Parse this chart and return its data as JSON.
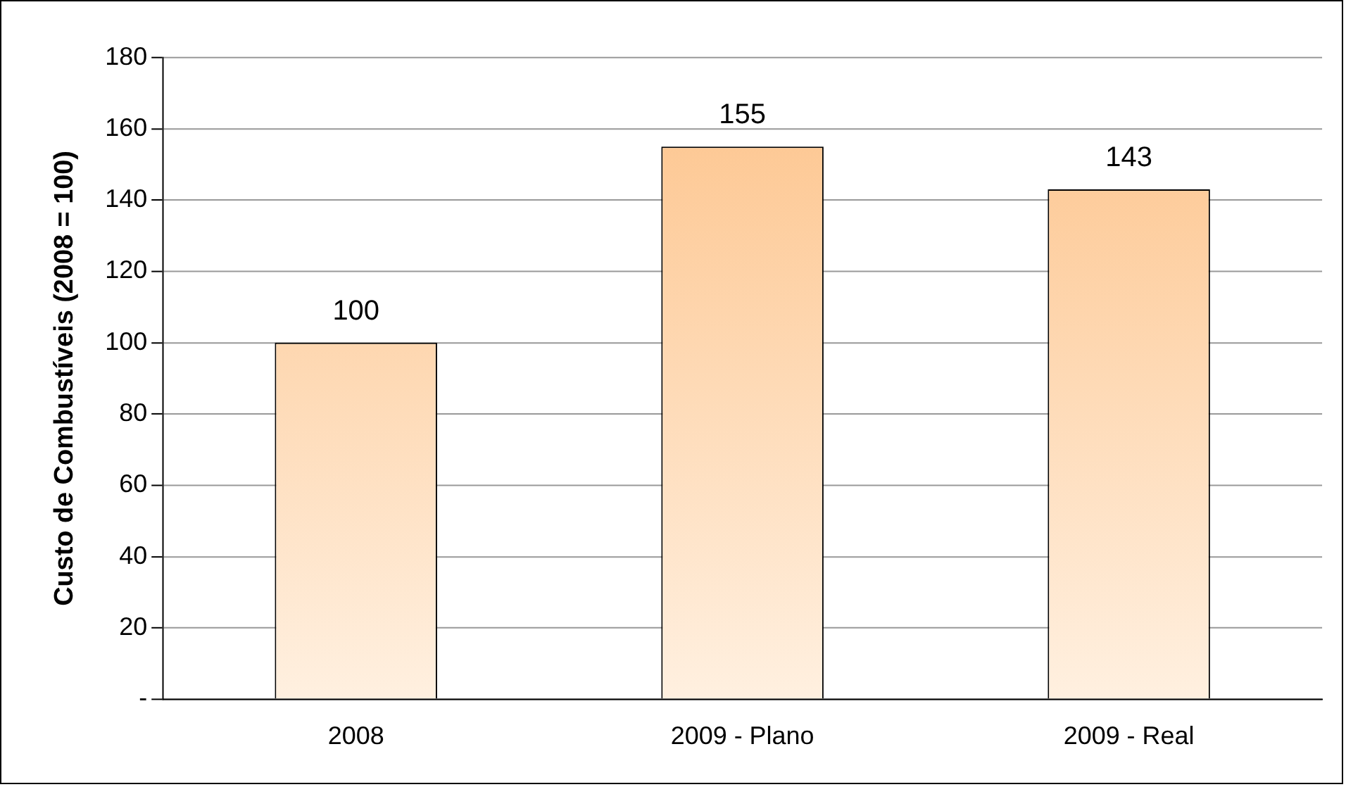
{
  "chart_data": {
    "type": "bar",
    "ylabel": "Custo de Combustíveis (2008 = 100)",
    "categories": [
      "2008",
      "2009 - Plano",
      "2009 - Real"
    ],
    "values": [
      100,
      155,
      143
    ],
    "color": "#fdc38a",
    "ylim": [
      0,
      180
    ],
    "yticks": [
      {
        "value": 0,
        "label": "-"
      },
      20,
      40,
      60,
      80,
      100,
      120,
      140,
      160,
      180
    ],
    "grid": "y",
    "data_labels": true,
    "legend": false
  }
}
